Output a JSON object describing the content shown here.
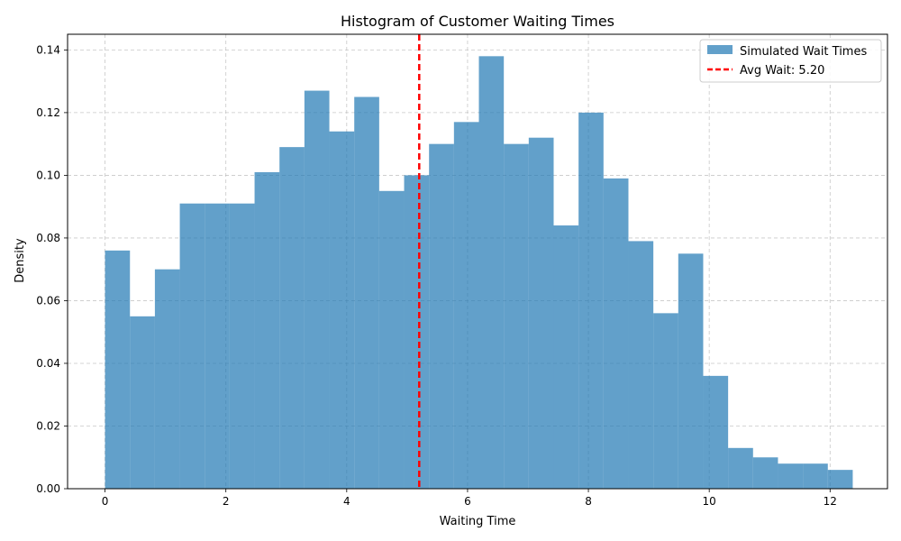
{
  "chart_data": {
    "type": "bar",
    "title": "Histogram of Customer Waiting Times",
    "xlabel": "Waiting Time",
    "ylabel": "Density",
    "xlim": [
      -0.62,
      12.95
    ],
    "ylim": [
      0,
      0.145
    ],
    "xticks": [
      0,
      2,
      4,
      6,
      8,
      10,
      12
    ],
    "yticks": [
      0.0,
      0.02,
      0.04,
      0.06,
      0.08,
      0.1,
      0.12,
      0.14
    ],
    "grid": true,
    "legend_position": "top-right",
    "series": [
      {
        "name": "Simulated Wait Times",
        "kind": "histogram",
        "color": "#1f77b4",
        "bin_start": 0.0,
        "bin_width": 0.4125,
        "values": [
          0.076,
          0.055,
          0.07,
          0.091,
          0.091,
          0.091,
          0.101,
          0.109,
          0.127,
          0.114,
          0.125,
          0.095,
          0.1,
          0.11,
          0.117,
          0.138,
          0.11,
          0.112,
          0.084,
          0.12,
          0.099,
          0.079,
          0.056,
          0.075,
          0.036,
          0.013,
          0.01,
          0.008,
          0.008,
          0.006
        ]
      },
      {
        "name": "Avg Wait: 5.20",
        "kind": "vline",
        "color": "#ff0000",
        "x": 5.2
      }
    ]
  }
}
